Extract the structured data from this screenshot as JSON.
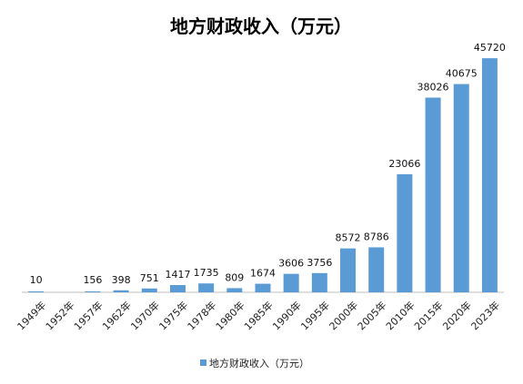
{
  "chart_data": {
    "type": "bar",
    "title": "地方财政收入（万元）",
    "categories": [
      "1949年",
      "1952年",
      "1957年",
      "1962年",
      "1970年",
      "1975年",
      "1978年",
      "1980年",
      "1985年",
      "1990年",
      "1995年",
      "2000年",
      "2005年",
      "2010年",
      "2015年",
      "2020年",
      "2023年"
    ],
    "series": [
      {
        "name": "地方财政收入（万元）",
        "color": "#5B9BD5",
        "values": [
          10,
          null,
          156,
          398,
          751,
          1417,
          1735,
          809,
          1674,
          3606,
          3756,
          8572,
          8786,
          23066,
          38026,
          40675,
          45720
        ],
        "labels": [
          "10",
          "",
          "156",
          "398",
          "751",
          "1417",
          "1735",
          "809",
          "1674",
          "3606",
          "3756",
          "8572",
          "8786",
          "23066",
          "38026",
          "40675",
          "45720"
        ]
      }
    ],
    "ylim": [
      0,
      50000
    ],
    "grid": false,
    "legend": "bottom"
  }
}
